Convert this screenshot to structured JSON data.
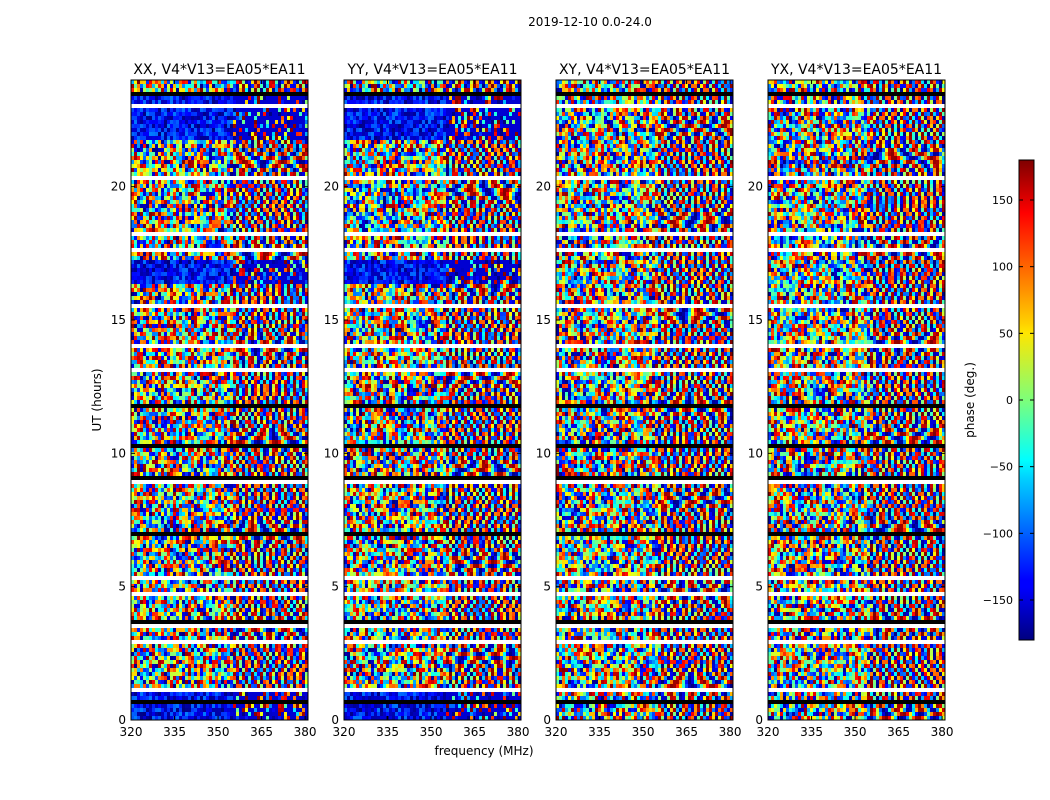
{
  "figure": {
    "suptitle": "2019-12-10 0.0-24.0",
    "xlabel": "frequency (MHz)",
    "ylabel": "UT (hours)"
  },
  "chart_data": {
    "type": "heatmap",
    "x_range": [
      320,
      381
    ],
    "y_range": [
      0,
      24
    ],
    "x_ticks": [
      320,
      335,
      350,
      365,
      380
    ],
    "y_ticks": [
      0,
      5,
      10,
      15,
      20
    ],
    "colormap": "jet",
    "colorbar": {
      "label": "phase (deg.)",
      "range": [
        -180,
        180
      ],
      "ticks": [
        150,
        100,
        50,
        0,
        -50,
        -100,
        -150
      ],
      "tick_labels": [
        "150",
        "100",
        "50",
        "0",
        "−50",
        "−100",
        "−150"
      ]
    },
    "panels": [
      {
        "title": "XX, V4*V13=EA05*EA11",
        "pol": "XX"
      },
      {
        "title": "YY, V4*V13=EA05*EA11",
        "pol": "YY"
      },
      {
        "title": "XY, V4*V13=EA05*EA11",
        "pol": "XY"
      },
      {
        "title": "YX, V4*V13=EA05*EA11",
        "pol": "YX"
      }
    ],
    "flagged_ut_bands": [
      [
        23.4,
        23.6
      ],
      [
        23.0,
        23.1
      ],
      [
        22.3,
        22.4
      ],
      [
        21.7,
        21.8
      ],
      [
        20.2,
        20.35
      ],
      [
        19.6,
        19.7
      ],
      [
        18.2,
        18.35
      ],
      [
        17.6,
        17.7
      ],
      [
        16.3,
        16.4
      ],
      [
        15.5,
        15.6
      ],
      [
        14.0,
        14.1
      ],
      [
        13.0,
        13.15
      ],
      [
        11.7,
        11.9
      ],
      [
        10.2,
        10.3
      ],
      [
        8.9,
        9.1
      ],
      [
        8.2,
        8.3
      ],
      [
        7.3,
        7.4
      ],
      [
        6.9,
        7.0
      ],
      [
        5.3,
        5.4
      ],
      [
        4.6,
        4.8
      ],
      [
        3.4,
        3.7
      ],
      [
        2.9,
        3.0
      ],
      [
        1.6,
        1.7
      ],
      [
        1.1,
        1.2
      ],
      [
        0.6,
        0.7
      ]
    ]
  }
}
